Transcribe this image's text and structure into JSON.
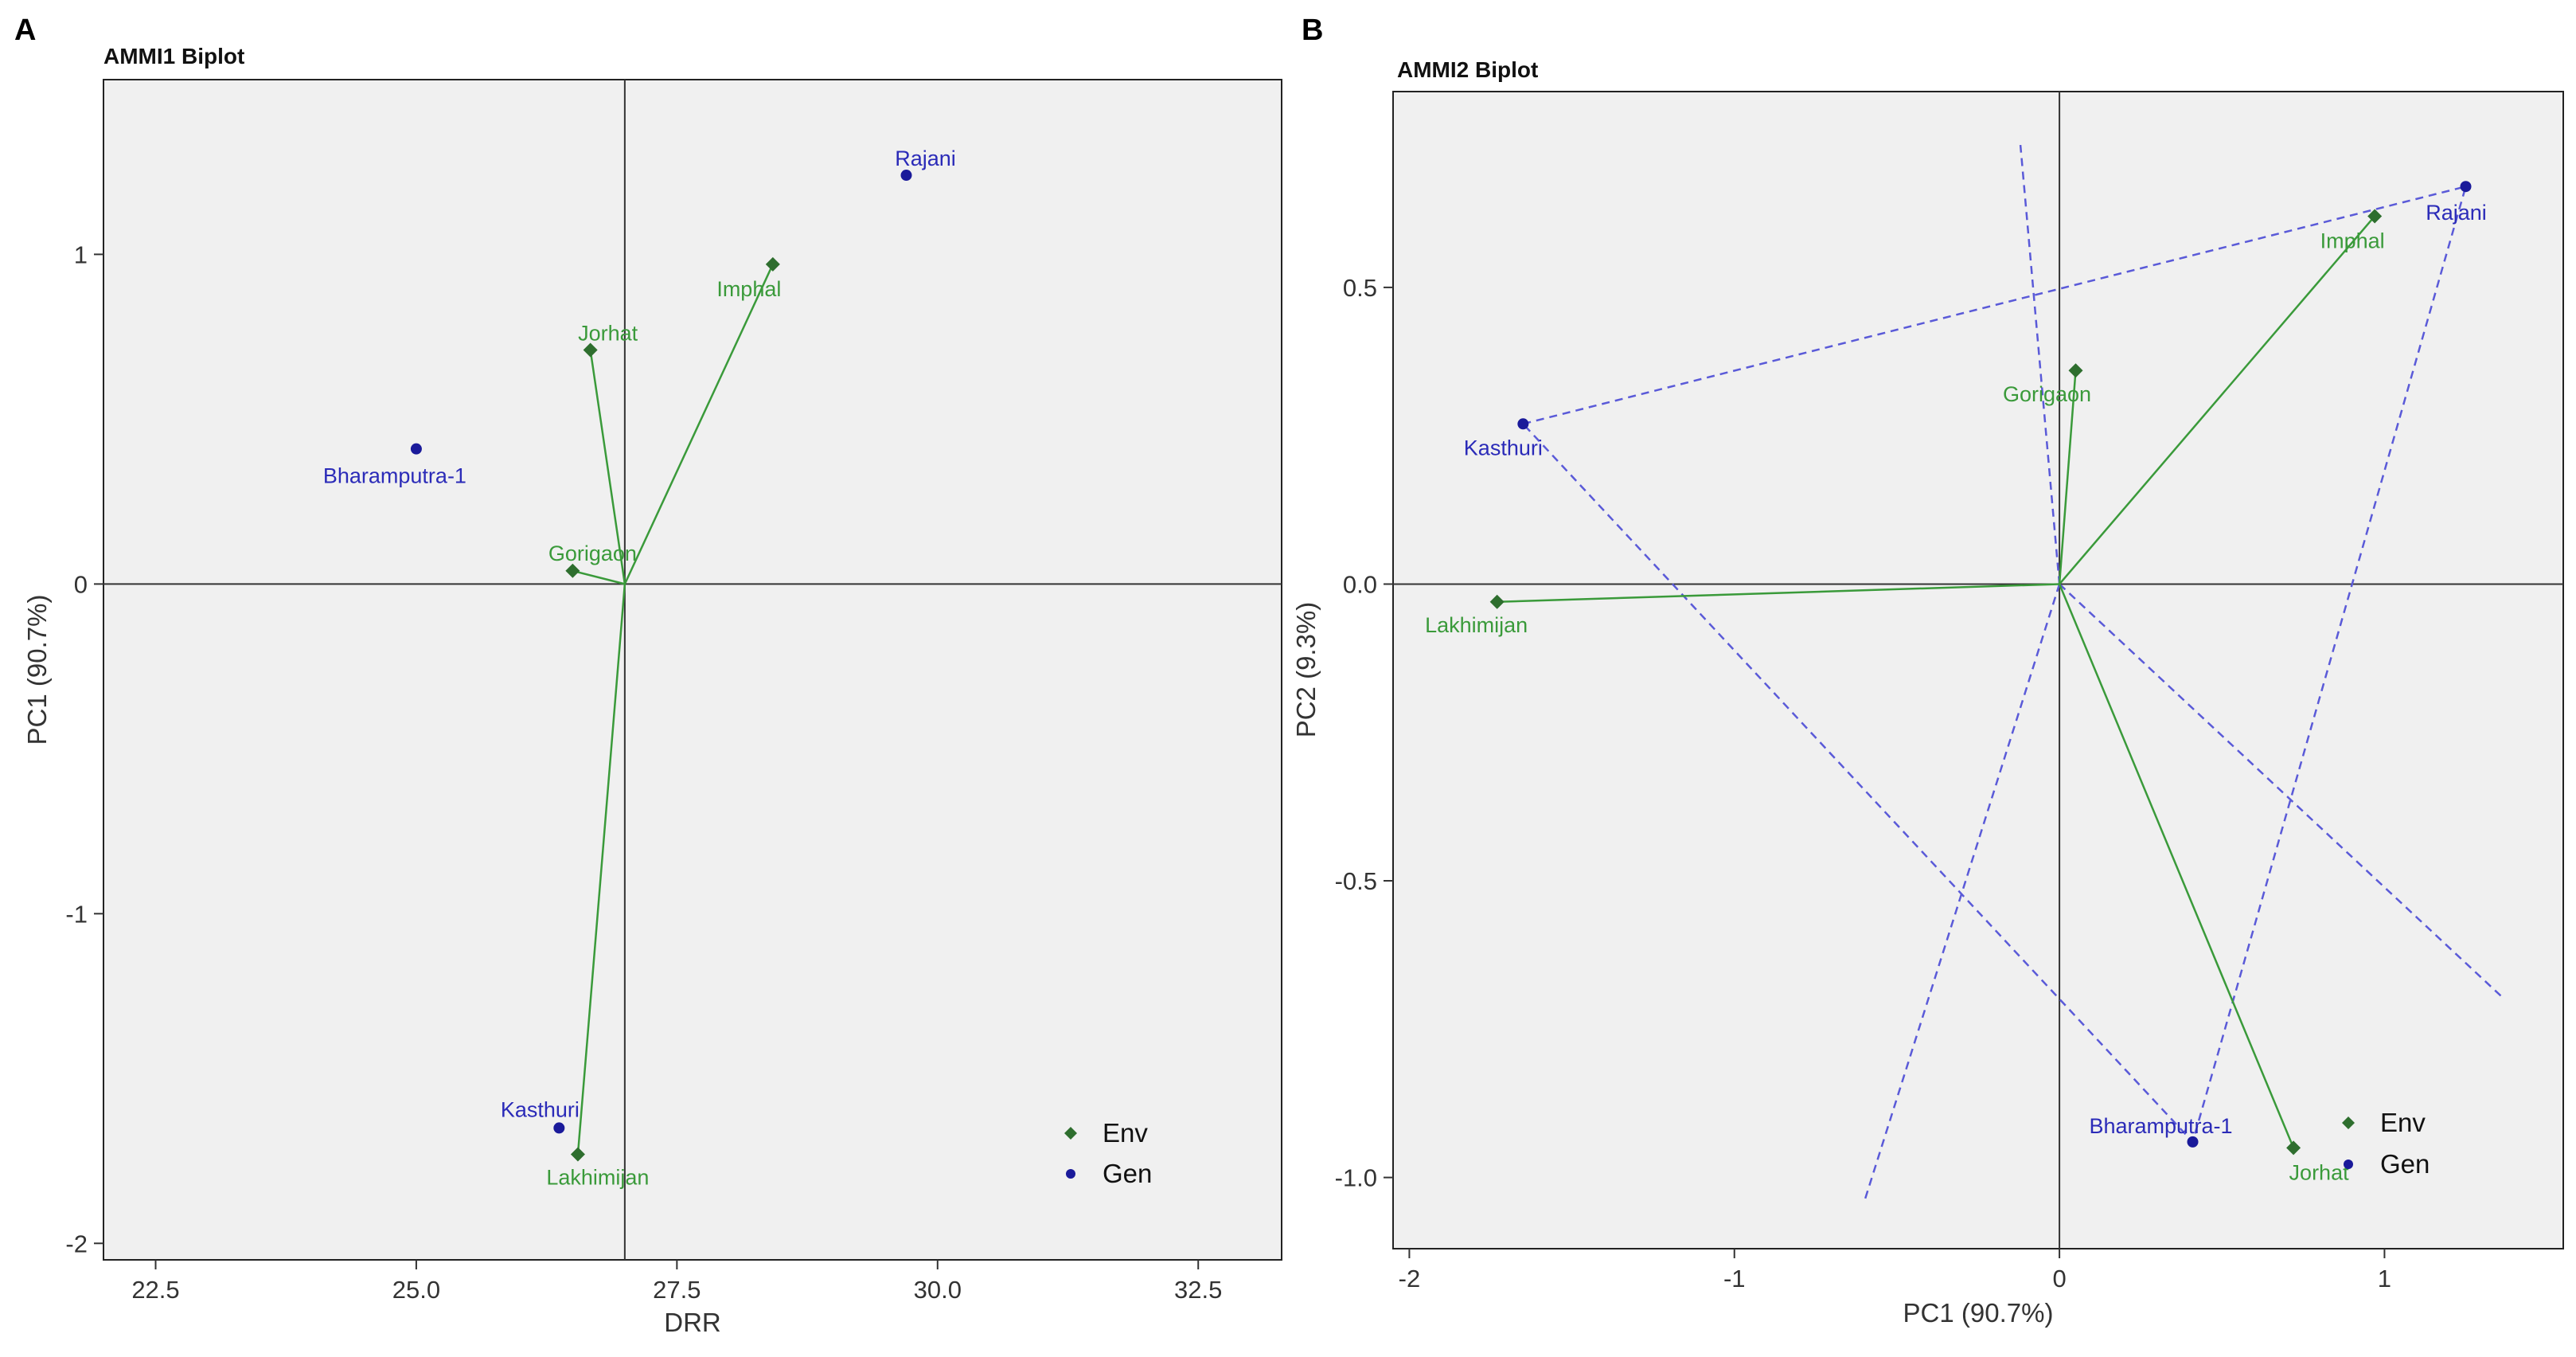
{
  "colors": {
    "env_point": "#2e6e2e",
    "env_line": "#3a9a3a",
    "env_text": "#3a9a3a",
    "gen_point": "#1a1a9a",
    "gen_text": "#2b2bb8",
    "hull_line": "#5a5ad8",
    "panel_bg": "#f0f0f0"
  },
  "chart_data": [
    {
      "panel_letter": "A",
      "type": "scatter",
      "title": "AMMI1 Biplot",
      "xlabel": "DRR",
      "ylabel": "PC1 (90.7%)",
      "xlim": [
        22.0,
        33.3
      ],
      "ylim": [
        -2.05,
        1.53
      ],
      "xticks": [
        22.5,
        25.0,
        27.5,
        30.0,
        32.5
      ],
      "xtick_labels": [
        "22.5",
        "25.0",
        "27.5",
        "30.0",
        "32.5"
      ],
      "yticks": [
        -2,
        -1,
        0,
        1
      ],
      "ytick_labels": [
        "-2",
        "-1",
        "0",
        "1"
      ],
      "origin": [
        27.0,
        0
      ],
      "environments": [
        {
          "name": "Imphal",
          "x": 28.42,
          "y": 0.97
        },
        {
          "name": "Jorhat",
          "x": 26.67,
          "y": 0.71
        },
        {
          "name": "Gorigaon",
          "x": 26.5,
          "y": 0.04
        },
        {
          "name": "Lakhimijan",
          "x": 26.55,
          "y": -1.73
        }
      ],
      "genotypes": [
        {
          "name": "Rajani",
          "x": 29.7,
          "y": 1.24
        },
        {
          "name": "Bharamputra-1",
          "x": 25.0,
          "y": 0.41
        },
        {
          "name": "Kasthuri",
          "x": 26.37,
          "y": -1.65
        }
      ],
      "legend": [
        {
          "label": "Env",
          "kind": "env"
        },
        {
          "label": "Gen",
          "kind": "gen"
        }
      ],
      "legend_position": "bottom-right"
    },
    {
      "panel_letter": "B",
      "type": "scatter",
      "title": "AMMI2 Biplot",
      "xlabel": "PC1 (90.7%)",
      "ylabel": "PC2 (9.3%)",
      "xlim": [
        -2.05,
        1.55
      ],
      "ylim": [
        -1.12,
        0.83
      ],
      "xticks": [
        -2,
        -1,
        0,
        1
      ],
      "xtick_labels": [
        "-2",
        "-1",
        "0",
        "1"
      ],
      "yticks": [
        -1.0,
        -0.5,
        0.0,
        0.5
      ],
      "ytick_labels": [
        "-1.0",
        "-0.5",
        "0.0",
        "0.5"
      ],
      "origin": [
        0,
        0
      ],
      "environments": [
        {
          "name": "Imphal",
          "x": 0.97,
          "y": 0.62
        },
        {
          "name": "Gorigaon",
          "x": 0.05,
          "y": 0.36
        },
        {
          "name": "Lakhimijan",
          "x": -1.73,
          "y": -0.03
        },
        {
          "name": "Jorhat",
          "x": 0.72,
          "y": -0.95
        }
      ],
      "genotypes": [
        {
          "name": "Rajani",
          "x": 1.25,
          "y": 0.67
        },
        {
          "name": "Kasthuri",
          "x": -1.65,
          "y": 0.27
        },
        {
          "name": "Bharamputra-1",
          "x": 0.41,
          "y": -0.94
        }
      ],
      "hull_order": [
        "Kasthuri",
        "Rajani",
        "Bharamputra-1"
      ],
      "sector_rays": [
        {
          "x": -0.12,
          "y": 0.74
        },
        {
          "x": -0.6,
          "y": -1.04
        },
        {
          "x": 1.37,
          "y": -0.7
        }
      ],
      "legend": [
        {
          "label": "Env",
          "kind": "env"
        },
        {
          "label": "Gen",
          "kind": "gen"
        }
      ],
      "legend_position": "bottom-right"
    }
  ]
}
